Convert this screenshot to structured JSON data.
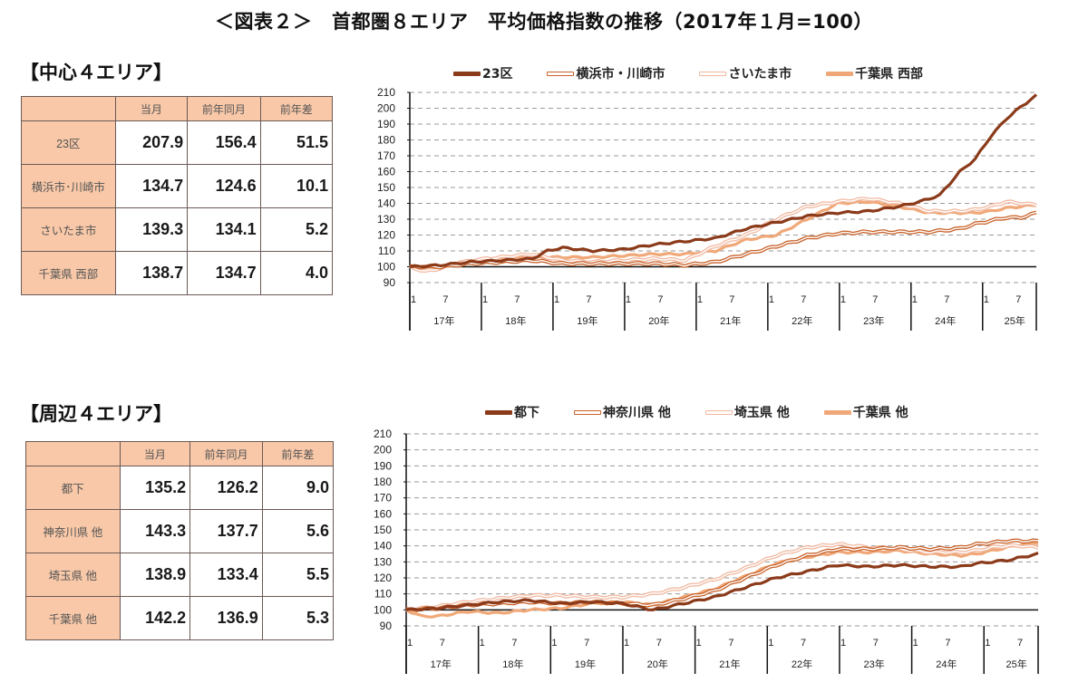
{
  "title": "＜図表２＞　首都圏８エリア　平均価格指数の推移（2017年１月=100）",
  "central": {
    "section_title": "【中心４エリア】",
    "table": {
      "headers": [
        "",
        "当月",
        "前年同月",
        "前年差"
      ],
      "rows": [
        {
          "label": "23区",
          "current": "207.9",
          "prev_year": "156.4",
          "diff": "51.5"
        },
        {
          "label": "横浜市･川崎市",
          "current": "134.7",
          "prev_year": "124.6",
          "diff": "10.1"
        },
        {
          "label": "さいたま市",
          "current": "139.3",
          "prev_year": "134.1",
          "diff": "5.2"
        },
        {
          "label": "千葉県 西部",
          "current": "138.7",
          "prev_year": "134.7",
          "diff": "4.0"
        }
      ]
    }
  },
  "suburban": {
    "section_title": "【周辺４エリア】",
    "table": {
      "headers": [
        "",
        "当月",
        "前年同月",
        "前年差"
      ],
      "rows": [
        {
          "label": "都下",
          "current": "135.2",
          "prev_year": "126.2",
          "diff": "9.0"
        },
        {
          "label": "神奈川県 他",
          "current": "143.3",
          "prev_year": "137.7",
          "diff": "5.6"
        },
        {
          "label": "埼玉県 他",
          "current": "138.9",
          "prev_year": "133.4",
          "diff": "5.5"
        },
        {
          "label": "千葉県 他",
          "current": "142.2",
          "prev_year": "136.9",
          "diff": "5.3"
        }
      ]
    }
  },
  "chart_data": [
    {
      "type": "line",
      "title": "中心4エリア 平均価格指数",
      "xlabel": "",
      "ylabel": "",
      "ylim": [
        90,
        210
      ],
      "yticks": [
        90,
        100,
        110,
        120,
        130,
        140,
        150,
        160,
        170,
        180,
        190,
        200,
        210
      ],
      "grid": "horizontal dashed",
      "legend_position": "top",
      "x_month_ticks": [
        "1",
        "7"
      ],
      "x_year_labels": [
        "17年",
        "18年",
        "19年",
        "20年",
        "21年",
        "22年",
        "23年",
        "24年",
        "25年"
      ],
      "x_range": "2017/1 - 2025/9 (monthly)",
      "series": [
        {
          "name": "23区",
          "color": "#8b3a1a",
          "style": "solid-thick",
          "points": [
            [
              0,
              100
            ],
            [
              6,
              101
            ],
            [
              12,
              103
            ],
            [
              18,
              104
            ],
            [
              24,
              105
            ],
            [
              27,
              110
            ],
            [
              30,
              112
            ],
            [
              36,
              110
            ],
            [
              42,
              111
            ],
            [
              48,
              114
            ],
            [
              54,
              116
            ],
            [
              60,
              118
            ],
            [
              66,
              124
            ],
            [
              72,
              128
            ],
            [
              78,
              132
            ],
            [
              84,
              134
            ],
            [
              90,
              135
            ],
            [
              96,
              138
            ],
            [
              100,
              141
            ],
            [
              104,
              145
            ],
            [
              108,
              160
            ],
            [
              111,
              168
            ],
            [
              114,
              182
            ],
            [
              117,
              193
            ],
            [
              120,
              201
            ],
            [
              123,
              208
            ]
          ]
        },
        {
          "name": "横浜市・川崎市",
          "color": "#c8622a",
          "style": "double",
          "points": [
            [
              0,
              100
            ],
            [
              6,
              100
            ],
            [
              12,
              102
            ],
            [
              18,
              103
            ],
            [
              24,
              104
            ],
            [
              30,
              102
            ],
            [
              36,
              102
            ],
            [
              42,
              102
            ],
            [
              48,
              102
            ],
            [
              54,
              101
            ],
            [
              60,
              103
            ],
            [
              66,
              108
            ],
            [
              72,
              113
            ],
            [
              78,
              118
            ],
            [
              84,
              121
            ],
            [
              90,
              122
            ],
            [
              96,
              122
            ],
            [
              102,
              122
            ],
            [
              108,
              124
            ],
            [
              111,
              127
            ],
            [
              114,
              129
            ],
            [
              117,
              131
            ],
            [
              120,
              131
            ],
            [
              123,
              134
            ]
          ]
        },
        {
          "name": "さいたま市",
          "color": "#f0b8a0",
          "style": "double-light",
          "points": [
            [
              0,
              100
            ],
            [
              3,
              97
            ],
            [
              6,
              99
            ],
            [
              12,
              104
            ],
            [
              18,
              106
            ],
            [
              24,
              108
            ],
            [
              30,
              104
            ],
            [
              36,
              103
            ],
            [
              42,
              104
            ],
            [
              48,
              105
            ],
            [
              54,
              104
            ],
            [
              60,
              113
            ],
            [
              66,
              120
            ],
            [
              72,
              130
            ],
            [
              78,
              138
            ],
            [
              84,
              141
            ],
            [
              90,
              143
            ],
            [
              96,
              140
            ],
            [
              102,
              135
            ],
            [
              108,
              135
            ],
            [
              111,
              136
            ],
            [
              114,
              138
            ],
            [
              117,
              141
            ],
            [
              120,
              140
            ],
            [
              123,
              139
            ]
          ]
        },
        {
          "name": "千葉県 西部",
          "color": "#f0a878",
          "style": "solid-thick",
          "points": [
            [
              0,
              100
            ],
            [
              6,
              100
            ],
            [
              12,
              104
            ],
            [
              18,
              105
            ],
            [
              24,
              106
            ],
            [
              30,
              106
            ],
            [
              36,
              106
            ],
            [
              42,
              107
            ],
            [
              48,
              108
            ],
            [
              54,
              108
            ],
            [
              60,
              110
            ],
            [
              66,
              117
            ],
            [
              72,
              120
            ],
            [
              78,
              130
            ],
            [
              84,
              140
            ],
            [
              90,
              141
            ],
            [
              96,
              138
            ],
            [
              102,
              134
            ],
            [
              108,
              134
            ],
            [
              111,
              134
            ],
            [
              114,
              135
            ],
            [
              117,
              137
            ],
            [
              120,
              138
            ],
            [
              123,
              139
            ]
          ]
        }
      ]
    },
    {
      "type": "line",
      "title": "周辺4エリア 平均価格指数",
      "xlabel": "",
      "ylabel": "",
      "ylim": [
        90,
        210
      ],
      "yticks": [
        90,
        100,
        110,
        120,
        130,
        140,
        150,
        160,
        170,
        180,
        190,
        200,
        210
      ],
      "grid": "horizontal dashed",
      "legend_position": "top",
      "x_month_ticks": [
        "1",
        "7"
      ],
      "x_year_labels": [
        "17年",
        "18年",
        "19年",
        "20年",
        "21年",
        "22年",
        "23年",
        "24年",
        "25年"
      ],
      "x_range": "2017/1 - 2025/9 (monthly)",
      "series": [
        {
          "name": "都下",
          "color": "#8b3a1a",
          "style": "solid-thick",
          "points": [
            [
              0,
              100
            ],
            [
              6,
              101
            ],
            [
              12,
              103
            ],
            [
              18,
              105
            ],
            [
              24,
              106
            ],
            [
              30,
              104
            ],
            [
              36,
              105
            ],
            [
              42,
              104
            ],
            [
              48,
              100
            ],
            [
              54,
              104
            ],
            [
              60,
              108
            ],
            [
              66,
              114
            ],
            [
              72,
              120
            ],
            [
              78,
              124
            ],
            [
              84,
              128
            ],
            [
              90,
              127
            ],
            [
              96,
              128
            ],
            [
              102,
              127
            ],
            [
              108,
              127
            ],
            [
              111,
              129
            ],
            [
              114,
              130
            ],
            [
              117,
              131
            ],
            [
              120,
              133
            ],
            [
              123,
              135
            ]
          ]
        },
        {
          "name": "神奈川県 他",
          "color": "#c8622a",
          "style": "double",
          "points": [
            [
              0,
              100
            ],
            [
              6,
              101
            ],
            [
              12,
              103
            ],
            [
              18,
              104
            ],
            [
              24,
              105
            ],
            [
              30,
              104
            ],
            [
              36,
              105
            ],
            [
              42,
              104
            ],
            [
              48,
              103
            ],
            [
              54,
              107
            ],
            [
              60,
              112
            ],
            [
              66,
              120
            ],
            [
              72,
              128
            ],
            [
              78,
              134
            ],
            [
              84,
              138
            ],
            [
              90,
              138
            ],
            [
              96,
              139
            ],
            [
              102,
              138
            ],
            [
              108,
              139
            ],
            [
              111,
              141
            ],
            [
              114,
              142
            ],
            [
              117,
              143
            ],
            [
              120,
              143
            ],
            [
              123,
              143
            ]
          ]
        },
        {
          "name": "埼玉県 他",
          "color": "#f0b8a0",
          "style": "double-light",
          "points": [
            [
              0,
              100
            ],
            [
              6,
              102
            ],
            [
              12,
              105
            ],
            [
              18,
              107
            ],
            [
              24,
              109
            ],
            [
              30,
              109
            ],
            [
              36,
              108
            ],
            [
              42,
              108
            ],
            [
              48,
              110
            ],
            [
              54,
              114
            ],
            [
              60,
              119
            ],
            [
              66,
              126
            ],
            [
              72,
              134
            ],
            [
              78,
              139
            ],
            [
              84,
              141
            ],
            [
              90,
              139
            ],
            [
              96,
              138
            ],
            [
              102,
              136
            ],
            [
              108,
              136
            ],
            [
              111,
              137
            ],
            [
              114,
              139
            ],
            [
              117,
              140
            ],
            [
              120,
              140
            ],
            [
              123,
              139
            ]
          ]
        },
        {
          "name": "千葉県 他",
          "color": "#f0a878",
          "style": "solid-thick",
          "points": [
            [
              0,
              100
            ],
            [
              3,
              96
            ],
            [
              6,
              96
            ],
            [
              12,
              99
            ],
            [
              18,
              98
            ],
            [
              24,
              100
            ],
            [
              30,
              101
            ],
            [
              36,
              104
            ],
            [
              42,
              105
            ],
            [
              48,
              103
            ],
            [
              54,
              108
            ],
            [
              60,
              113
            ],
            [
              66,
              121
            ],
            [
              72,
              129
            ],
            [
              78,
              133
            ],
            [
              84,
              136
            ],
            [
              90,
              136
            ],
            [
              96,
              137
            ],
            [
              102,
              135
            ],
            [
              108,
              134
            ],
            [
              111,
              135
            ],
            [
              114,
              137
            ],
            [
              117,
              139
            ],
            [
              120,
              141
            ],
            [
              123,
              142
            ]
          ]
        }
      ]
    }
  ]
}
